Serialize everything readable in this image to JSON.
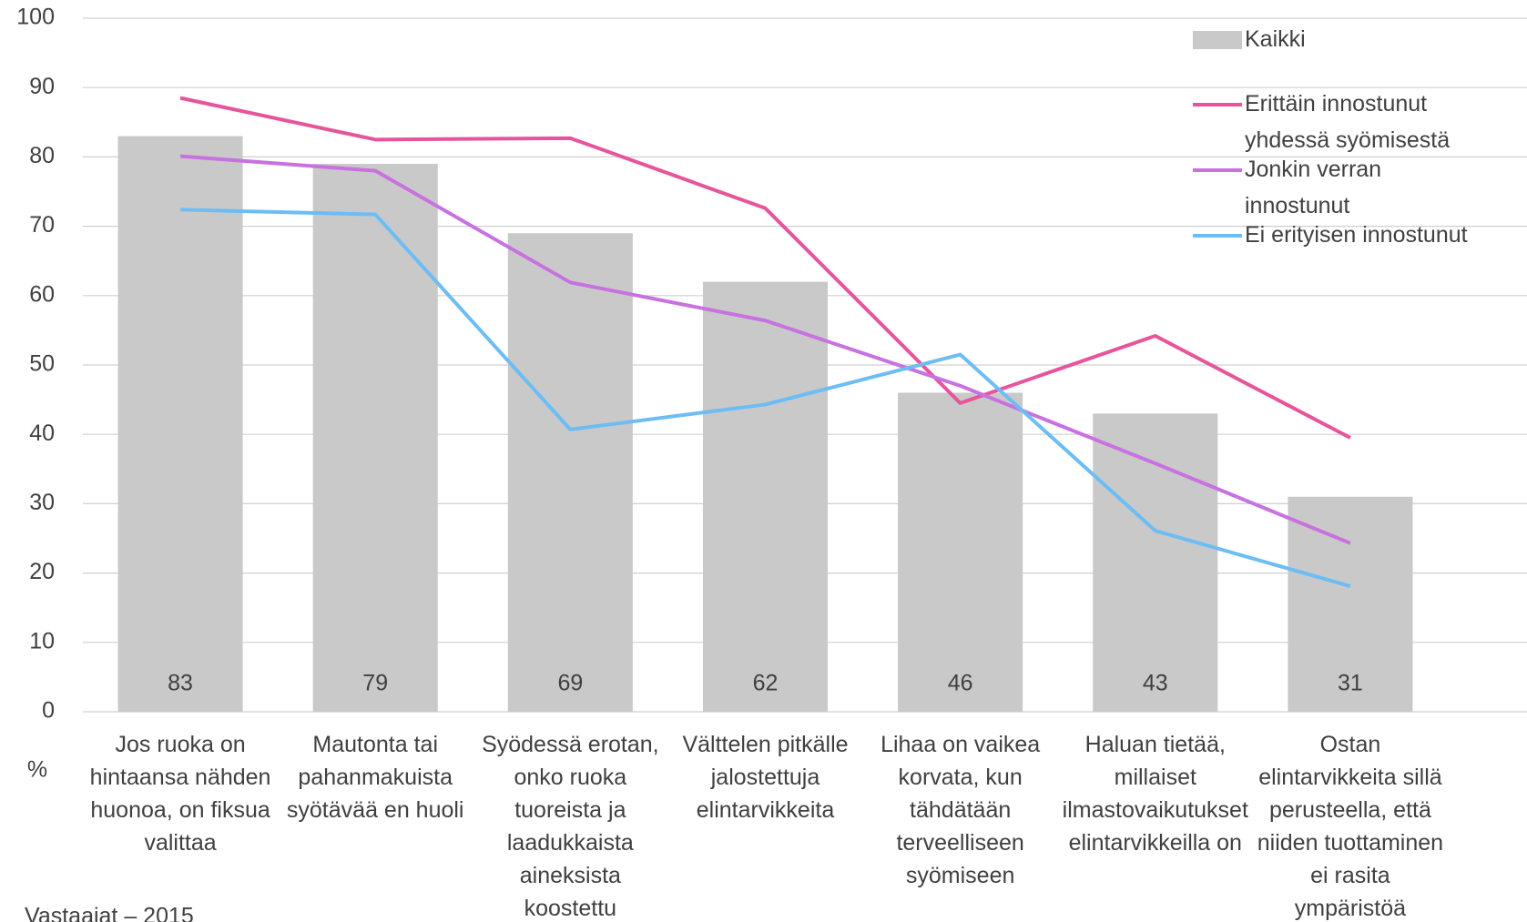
{
  "chart_data": {
    "type": "combo",
    "categories": [
      "Jos ruoka on hintaansa nähden huonoa, on fiksua valittaa",
      "Mautonta tai pahanmakuista syötävää en huoli",
      "Syödessä erotan, onko ruoka tuoreista ja laadukkaista aineksista koostettu",
      "Välttelen pitkälle jalostettuja elintarvikkeita",
      "Lihaa on vaikea korvata, kun tähdätään terveelliseen syömiseen",
      "Haluan tietää, millaiset ilmastovaikutukset elintarvikkeilla on",
      "Ostan elintarvikkeita sillä perusteella, että niiden tuottaminen ei rasita ympäristöä"
    ],
    "series": [
      {
        "name": "Kaikki",
        "type": "bar",
        "color": "#c9c9c9",
        "values": [
          83,
          79,
          69,
          62,
          46,
          43,
          31
        ]
      },
      {
        "name": "Erittäin innostunut yhdessä syömisestä",
        "type": "line",
        "color": "#e6559b",
        "values": [
          88.5,
          82.5,
          82.7,
          72.6,
          44.5,
          54.2,
          39.5
        ]
      },
      {
        "name": "Jonkin verran innostunut",
        "type": "line",
        "color": "#c872e0",
        "values": [
          80.1,
          78.0,
          61.9,
          56.4,
          47.0,
          35.8,
          24.3
        ]
      },
      {
        "name": "Ei erityisen innostunut",
        "type": "line",
        "color": "#6dbdf5",
        "values": [
          72.4,
          71.7,
          40.7,
          44.3,
          51.5,
          26.1,
          18.1
        ]
      }
    ],
    "ylabel": "%",
    "note": "Vastaajat – 2015",
    "ylim": [
      0,
      100
    ],
    "yticks": [
      0,
      10,
      20,
      30,
      40,
      50,
      60,
      70,
      80,
      90,
      100
    ],
    "grid": true,
    "legend": "upper right"
  }
}
